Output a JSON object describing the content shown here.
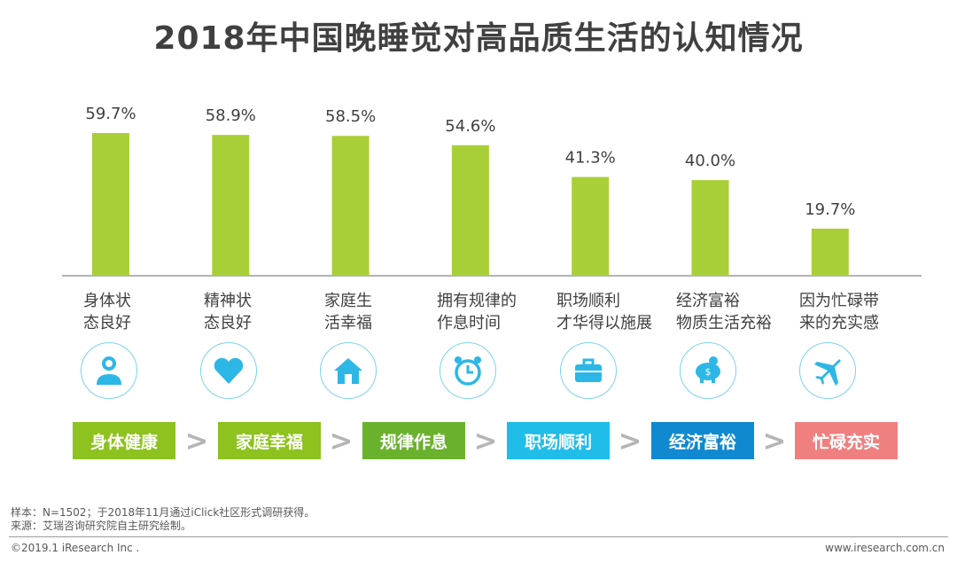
{
  "chart_data": {
    "type": "bar",
    "title": "2018年中国晚睡觉对高品质生活的认知情况",
    "categories": [
      "身体状\n态良好",
      "精神状\n态良好",
      "家庭生\n活幸福",
      "拥有规律的\n作息时间",
      "职场顺利\n才华得以施展",
      "经济富裕\n物质生活充裕",
      "因为忙碌带\n来的充实感"
    ],
    "values": [
      59.7,
      58.9,
      58.5,
      54.6,
      41.3,
      40.0,
      19.7
    ],
    "value_labels": [
      "59.7%",
      "58.9%",
      "58.5%",
      "54.6%",
      "41.3%",
      "40.0%",
      "19.7%"
    ],
    "bar_color": "#a9cf38",
    "ylim": [
      0,
      60
    ]
  },
  "icons": [
    "people-icon",
    "heart-icon",
    "house-icon",
    "alarm-clock-icon",
    "briefcase-icon",
    "piggy-bank-icon",
    "airplane-icon"
  ],
  "stages": [
    {
      "label": "身体健康",
      "color": "#8dc21f"
    },
    {
      "label": "家庭幸福",
      "color": "#8dc21f"
    },
    {
      "label": "规律作息",
      "color": "#6ab22e"
    },
    {
      "label": "职场顺利",
      "color": "#1fbde8"
    },
    {
      "label": "经济富裕",
      "color": "#1089d0"
    },
    {
      "label": "忙碌充实",
      "color": "#f08080"
    }
  ],
  "arrow_symbol": ">",
  "footnotes": {
    "sample": "样本：N=1502；于2018年11月通过iClick社区形式调研获得。",
    "source": "来源：艾瑞咨询研究院自主研究绘制。"
  },
  "footer": {
    "copyright": "©2019.1 iResearch Inc .",
    "website": "www.iresearch.com.cn"
  }
}
